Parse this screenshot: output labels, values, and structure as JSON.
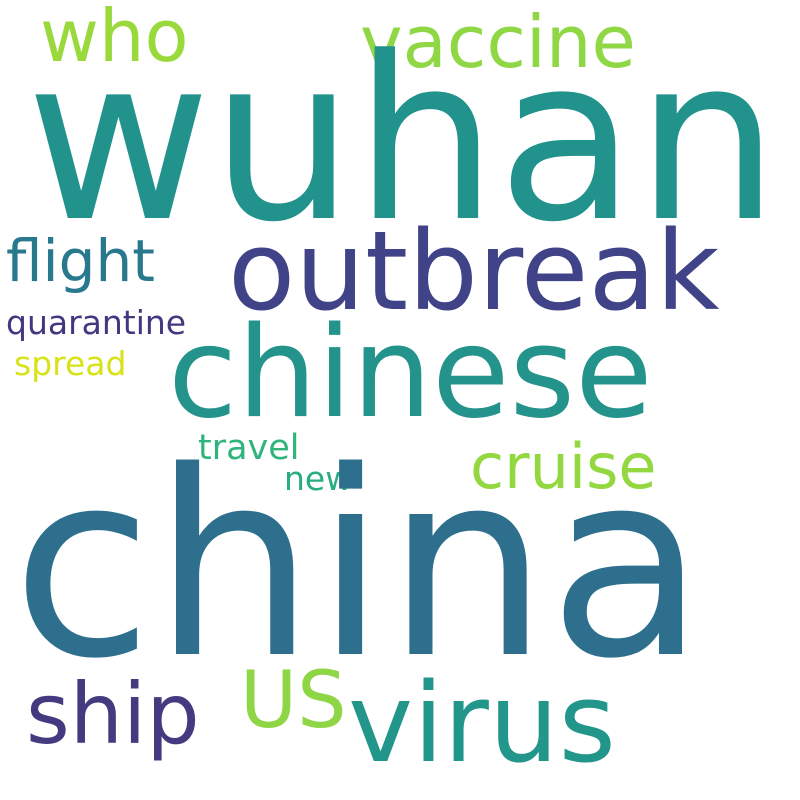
{
  "words": [
    {
      "id": "wuhan",
      "text": "wuhan",
      "color": "#21928c"
    },
    {
      "id": "china",
      "text": "china",
      "color": "#2e6f8e"
    },
    {
      "id": "outbreak",
      "text": "outbreak",
      "color": "#404387"
    },
    {
      "id": "chinese",
      "text": "chinese",
      "color": "#24938b"
    },
    {
      "id": "virus",
      "text": "virus",
      "color": "#23968b"
    },
    {
      "id": "vaccine",
      "text": "vaccine",
      "color": "#8fd744"
    },
    {
      "id": "who",
      "text": "who",
      "color": "#9ad93c"
    },
    {
      "id": "flight",
      "text": "flight",
      "color": "#28788e"
    },
    {
      "id": "quarantine",
      "text": "quarantine",
      "color": "#433880"
    },
    {
      "id": "spread",
      "text": "spread",
      "color": "#d8e219"
    },
    {
      "id": "cruise",
      "text": "cruise",
      "color": "#93d741"
    },
    {
      "id": "travel",
      "text": "travel",
      "color": "#2fb47c"
    },
    {
      "id": "new",
      "text": "new",
      "color": "#27ad81"
    },
    {
      "id": "ship",
      "text": "ship",
      "color": "#433a7f"
    },
    {
      "id": "us",
      "text": "US",
      "color": "#8ed645"
    }
  ]
}
